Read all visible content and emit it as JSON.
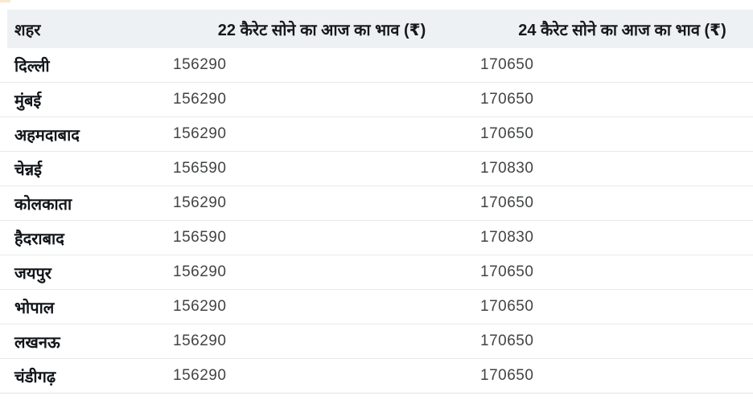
{
  "colors": {
    "header_background": "#eef1f4",
    "row_divider": "#e7ebeb",
    "bottom_border": "#d9e6f1",
    "city_text": "#111418",
    "value_text": "#414345"
  },
  "chart_data": {
    "type": "table",
    "title": "",
    "columns": [
      "शहर",
      "22 कैरेट सोने का आज का भाव (₹)",
      "24 कैरेट सोने का आज का भाव (₹)"
    ],
    "rows": [
      {
        "city": "दिल्ली",
        "k22": "156290",
        "k24": "170650"
      },
      {
        "city": "मुंबई",
        "k22": "156290",
        "k24": "170650"
      },
      {
        "city": "अहमदाबाद",
        "k22": "156290",
        "k24": "170650"
      },
      {
        "city": "चेन्नई",
        "k22": "156590",
        "k24": "170830"
      },
      {
        "city": "कोलकाता",
        "k22": "156290",
        "k24": "170650"
      },
      {
        "city": "हैदराबाद",
        "k22": "156590",
        "k24": "170830"
      },
      {
        "city": "जयपुर",
        "k22": "156290",
        "k24": "170650"
      },
      {
        "city": "भोपाल",
        "k22": "156290",
        "k24": "170650"
      },
      {
        "city": "लखनऊ",
        "k22": "156290",
        "k24": "170650"
      },
      {
        "city": "चंडीगढ़",
        "k22": "156290",
        "k24": "170650"
      }
    ]
  }
}
